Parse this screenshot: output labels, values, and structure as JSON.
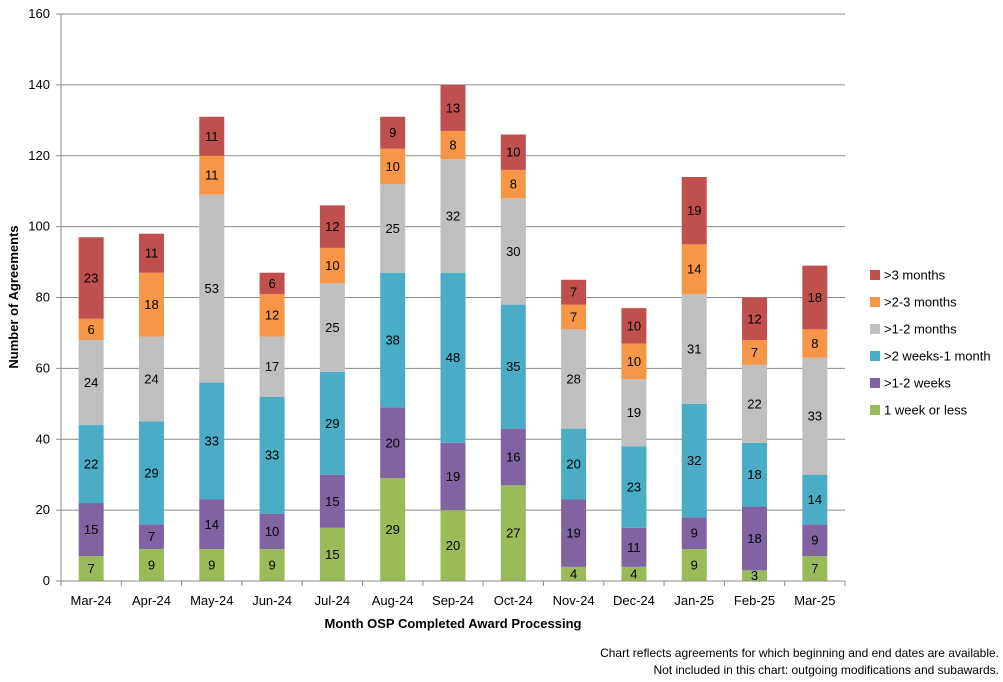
{
  "chart_data": {
    "type": "stacked-bar",
    "xlabel": "Month OSP Completed Award Processing",
    "ylabel": "Number of Agreements",
    "ylim": [
      0,
      160
    ],
    "yticks": [
      0,
      20,
      40,
      60,
      80,
      100,
      120,
      140,
      160
    ],
    "grid": true,
    "legend_position": "right",
    "categories": [
      "Mar-24",
      "Apr-24",
      "May-24",
      "Jun-24",
      "Jul-24",
      "Aug-24",
      "Sep-24",
      "Oct-24",
      "Nov-24",
      "Dec-24",
      "Jan-25",
      "Feb-25",
      "Mar-25"
    ],
    "series": [
      {
        "name": "1 week or less",
        "color": "#9BBB59",
        "values": [
          7,
          9,
          9,
          9,
          15,
          29,
          20,
          27,
          4,
          4,
          9,
          3,
          7
        ]
      },
      {
        "name": ">1-2 weeks",
        "color": "#8064A2",
        "values": [
          15,
          7,
          14,
          10,
          15,
          20,
          19,
          16,
          19,
          11,
          9,
          18,
          9
        ]
      },
      {
        "name": ">2 weeks-1 month",
        "color": "#4BACC6",
        "values": [
          22,
          29,
          33,
          33,
          29,
          38,
          48,
          35,
          20,
          23,
          32,
          18,
          14
        ]
      },
      {
        "name": ">1-2 months",
        "color": "#BFBFBF",
        "values": [
          24,
          24,
          53,
          17,
          25,
          25,
          32,
          30,
          28,
          19,
          31,
          22,
          33
        ]
      },
      {
        "name": ">2-3 months",
        "color": "#F79646",
        "values": [
          6,
          18,
          11,
          12,
          10,
          10,
          8,
          8,
          7,
          10,
          14,
          7,
          8
        ]
      },
      {
        "name": ">3 months",
        "color": "#C0504D",
        "values": [
          23,
          11,
          11,
          6,
          12,
          9,
          13,
          10,
          7,
          10,
          19,
          12,
          18
        ]
      }
    ]
  },
  "footnotes": [
    "Chart reflects agreements for which beginning and end dates are available.",
    "Not included in this chart: outgoing modifications and subawards."
  ]
}
